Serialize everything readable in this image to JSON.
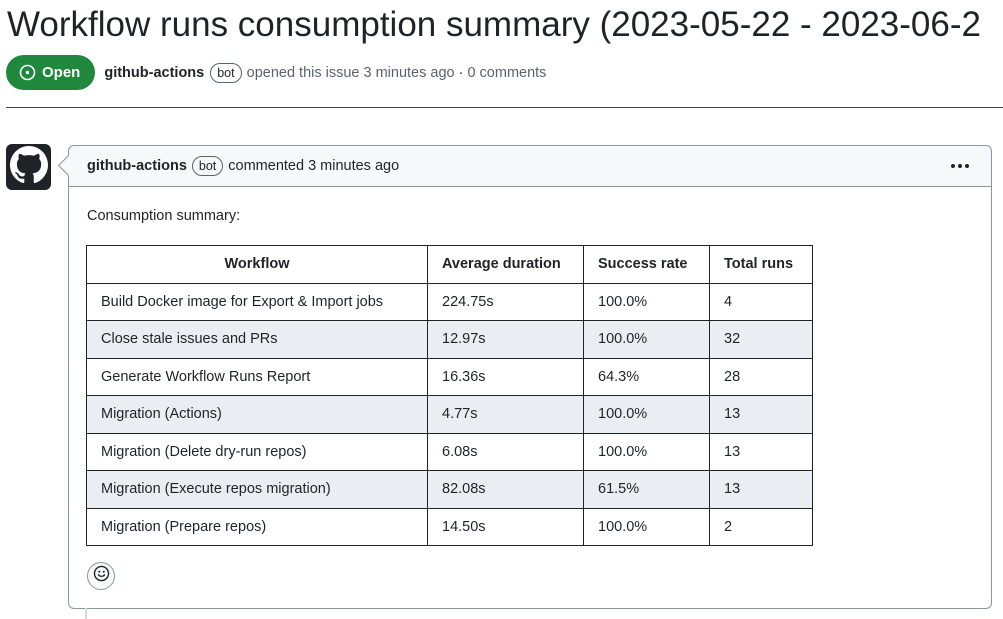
{
  "issue": {
    "title": "Workflow runs consumption summary (2023-05-22 - 2023-06-2",
    "state_label": "Open",
    "author": "github-actions",
    "bot_label": "bot",
    "opened_text": "opened this issue 3 minutes ago",
    "separator": "·",
    "comments_text": "0 comments"
  },
  "comment": {
    "author": "github-actions",
    "bot_label": "bot",
    "action_text": "commented 3 minutes ago",
    "intro": "Consumption summary:",
    "table": {
      "headers": [
        "Workflow",
        "Average duration",
        "Success rate",
        "Total runs"
      ],
      "rows": [
        [
          "Build Docker image for Export & Import jobs",
          "224.75s",
          "100.0%",
          "4"
        ],
        [
          "Close stale issues and PRs",
          "12.97s",
          "100.0%",
          "32"
        ],
        [
          "Generate Workflow Runs Report",
          "16.36s",
          "64.3%",
          "28"
        ],
        [
          "Migration (Actions)",
          "4.77s",
          "100.0%",
          "13"
        ],
        [
          "Migration (Delete dry-run repos)",
          "6.08s",
          "100.0%",
          "13"
        ],
        [
          "Migration (Execute repos migration)",
          "82.08s",
          "61.5%",
          "13"
        ],
        [
          "Migration (Prepare repos)",
          "14.50s",
          "100.0%",
          "2"
        ]
      ]
    }
  },
  "icons": {
    "state": "issue-opened-icon",
    "avatar": "github-mark-icon",
    "menu": "kebab-horizontal-icon",
    "reaction": "smiley-icon"
  },
  "colors": {
    "open_badge": "#1f883d",
    "header_bg": "#f6f8fa",
    "alt_row_bg": "#eaeef2",
    "text": "#1f2328",
    "muted_text": "#59636e"
  }
}
